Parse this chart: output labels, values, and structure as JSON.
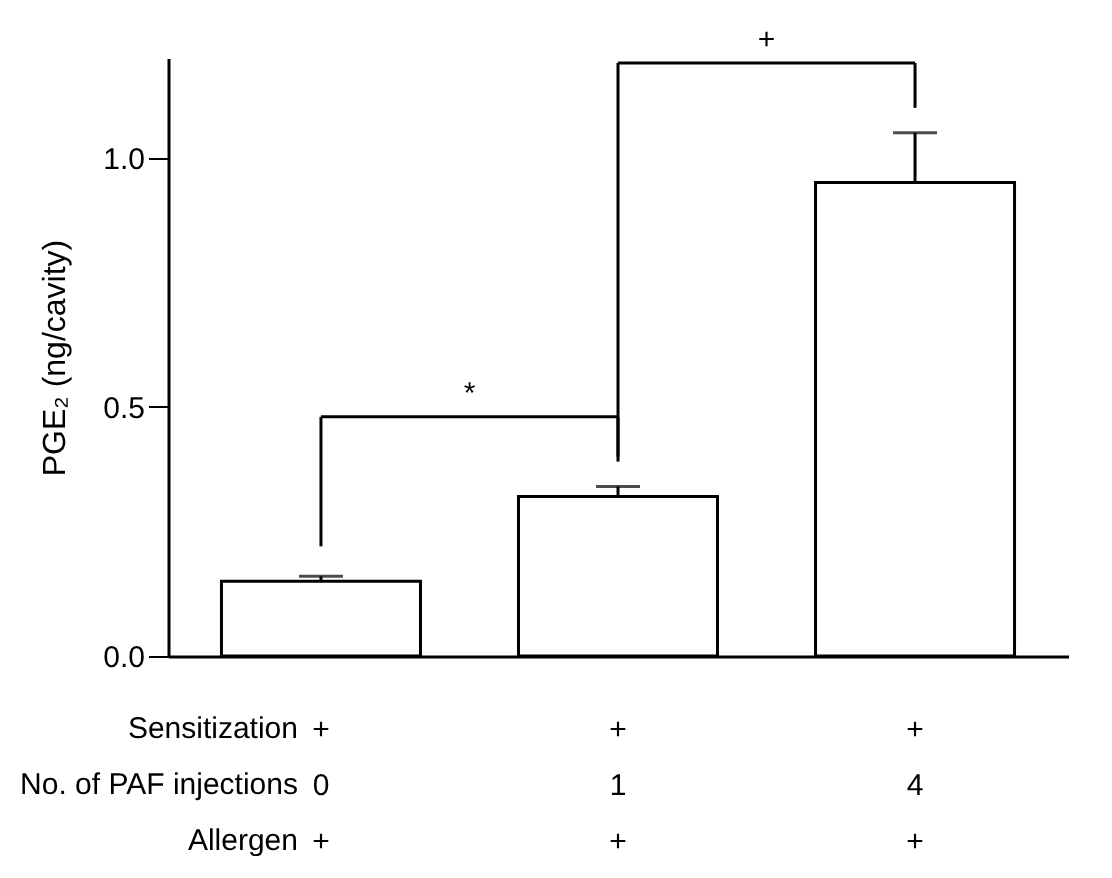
{
  "chart_data": {
    "type": "bar",
    "ylabel": "PGE₂ (ng/cavity)",
    "categories": [
      "+\n0\n+",
      "+\n1\n+",
      "+\n4\n+"
    ],
    "series": [
      {
        "color": "#ffffff",
        "values": [
          0.15,
          0.32,
          0.95
        ],
        "errors": [
          0.01,
          0.02,
          0.1
        ]
      }
    ],
    "ylim": [
      0,
      1.2
    ],
    "yticks": [
      {
        "value": 0,
        "label": "0.0"
      },
      {
        "value": 0.5,
        "label": "0.5"
      },
      {
        "value": 1,
        "label": "1.0"
      }
    ],
    "annotations": [
      "*",
      "+",
      "Sensitization",
      "No. of PAF injections",
      "Allergen"
    ]
  }
}
